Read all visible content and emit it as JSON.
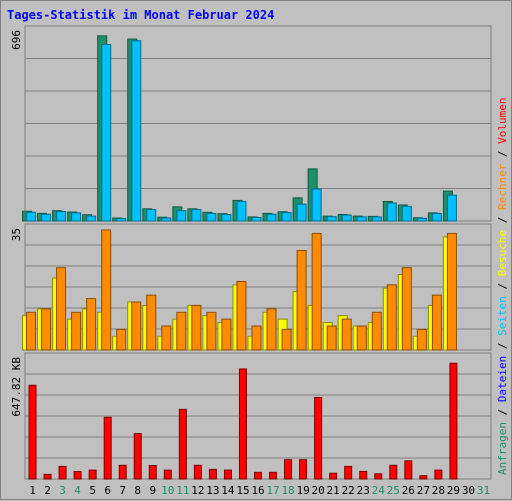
{
  "chart_data": {
    "type": "bar",
    "title": "Tages-Statistik im Monat Februar 2024",
    "categories": [
      "1",
      "2",
      "3",
      "4",
      "5",
      "6",
      "7",
      "8",
      "9",
      "10",
      "11",
      "12",
      "13",
      "14",
      "15",
      "16",
      "17",
      "18",
      "19",
      "20",
      "21",
      "22",
      "23",
      "24",
      "25",
      "26",
      "27",
      "28",
      "29",
      "30",
      "31"
    ],
    "weekend_days": [
      "3",
      "4",
      "10",
      "11",
      "17",
      "18",
      "24",
      "25",
      "31"
    ],
    "panels": [
      {
        "id": "requests",
        "max_label": "696",
        "ylim": [
          0,
          696
        ],
        "series": [
          {
            "name": "Anfragen",
            "color": "#1f8f6a",
            "values": [
              36,
              28,
              38,
              33,
              23,
              682,
              11,
              670,
              45,
              14,
              52,
              45,
              32,
              27,
              76,
              15,
              28,
              34,
              85,
              192,
              18,
              24,
              18,
              17,
              72,
              59,
              12,
              30,
              110,
              null,
              null
            ]
          },
          {
            "name": "Dateien",
            "color": "#00c0ff",
            "values": [
              32,
              25,
              35,
              30,
              18,
              650,
              9,
              664,
              42,
              11,
              38,
              42,
              28,
              24,
              72,
              13,
              25,
              31,
              62,
              118,
              16,
              22,
              15,
              15,
              66,
              54,
              10,
              28,
              95,
              null,
              null
            ]
          }
        ]
      },
      {
        "id": "visits",
        "max_label": "35",
        "ylim": [
          0,
          35
        ],
        "series": [
          {
            "name": "Seiten",
            "color": "#00c0ff",
            "values": [
              null,
              null,
              null,
              null,
              null,
              null,
              null,
              null,
              null,
              null,
              null,
              null,
              null,
              null,
              null,
              null,
              null,
              null,
              null,
              null,
              null,
              null,
              null,
              null,
              null,
              null,
              null,
              null,
              null,
              null,
              null
            ]
          },
          {
            "name": "Besuche",
            "color": "#ffff00",
            "values": [
              10,
              12,
              21,
              9,
              12,
              11,
              4,
              14,
              13,
              4,
              9,
              13,
              10,
              8,
              19,
              4,
              11,
              9,
              17,
              13,
              8,
              10,
              7,
              8,
              18,
              22,
              4,
              13,
              33,
              null,
              null
            ]
          },
          {
            "name": "Rechner",
            "color": "#ff8c00",
            "values": [
              11,
              12,
              24,
              11,
              15,
              35,
              6,
              14,
              16,
              7,
              11,
              13,
              11,
              9,
              20,
              7,
              12,
              6,
              29,
              34,
              7,
              9,
              7,
              11,
              19,
              24,
              6,
              16,
              34,
              null,
              null
            ]
          }
        ]
      },
      {
        "id": "volume",
        "max_label": "647.82 KB",
        "unit": "KB",
        "ylim": [
          0,
          647.82
        ],
        "series": [
          {
            "name": "Volumen",
            "color": "#ff0000",
            "values": [
              506,
              25,
              68,
              40,
              48,
              333,
              74,
              245,
              73,
              48,
              376,
              74,
              52,
              48,
              594,
              36,
              36,
              104,
              104,
              440,
              31,
              68,
              41,
              28,
              74,
              98,
              18,
              48,
              625,
              null,
              null
            ]
          }
        ]
      }
    ],
    "legend_right": [
      {
        "name": "Anfragen",
        "color": "#1f8f6a"
      },
      {
        "name": "Dateien",
        "color": "#0000ff"
      },
      {
        "name": "Seiten",
        "color": "#00c0ff"
      },
      {
        "name": "Besuche",
        "color": "#ffff00"
      },
      {
        "name": "Rechner",
        "color": "#ff8c00"
      },
      {
        "name": "Volumen",
        "color": "#ff0000"
      }
    ],
    "legend_separator": " / ",
    "grid": true
  }
}
